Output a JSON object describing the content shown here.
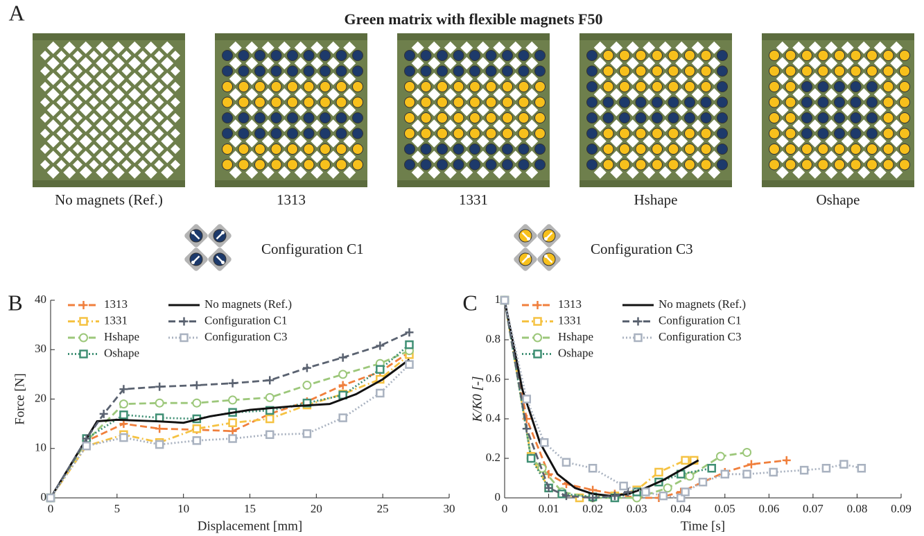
{
  "panel_a": {
    "label": "A",
    "title": "Green matrix with flexible magnets F50",
    "samples": [
      "No magnets (Ref.)",
      "1313",
      "1331",
      "Hshape",
      "Oshape"
    ],
    "configurations": [
      "Configuration C1",
      "Configuration C3"
    ]
  },
  "chart_data": [
    {
      "type": "line",
      "panel_label": "B",
      "xlabel": "Displacement [mm]",
      "ylabel": "Force [N]",
      "xlim": [
        0,
        30
      ],
      "xticks": [
        0,
        5,
        10,
        15,
        20,
        25,
        30
      ],
      "ylim": [
        0,
        40
      ],
      "yticks": [
        0,
        10,
        20,
        30,
        40
      ],
      "legend": "upper left",
      "series": [
        {
          "name": "1313",
          "color": "#f07f3c",
          "dash": "dashed",
          "marker": "plus",
          "x": [
            0,
            2.7,
            5.5,
            8.2,
            11,
            13.7,
            16.5,
            19.3,
            22,
            24.8,
            27
          ],
          "values": [
            0,
            11.5,
            15,
            14,
            13.8,
            13.5,
            17,
            19.5,
            22.8,
            25.5,
            29.5
          ]
        },
        {
          "name": "1331",
          "color": "#f5c242",
          "dash": "dashdot",
          "marker": "square",
          "x": [
            0,
            2.7,
            5.5,
            8.2,
            11,
            13.7,
            16.5,
            19.3,
            22,
            24.8,
            27
          ],
          "values": [
            0,
            10.5,
            12.8,
            11.2,
            14,
            15.2,
            16,
            18.8,
            21,
            24,
            29
          ]
        },
        {
          "name": "Hshape",
          "color": "#9cc77a",
          "dash": "dashed",
          "marker": "circle",
          "x": [
            0,
            2.7,
            5.5,
            8.2,
            11,
            13.7,
            16.5,
            19.3,
            22,
            24.8,
            27
          ],
          "values": [
            0,
            11.5,
            19,
            19.2,
            19.2,
            19.8,
            20.3,
            22.8,
            25,
            27.2,
            29.8
          ]
        },
        {
          "name": "Oshape",
          "color": "#3f8f74",
          "dash": "dotted",
          "marker": "square",
          "x": [
            0,
            2.7,
            5.5,
            8.2,
            11,
            13.7,
            16.5,
            19.3,
            22,
            24.8,
            27
          ],
          "values": [
            0,
            12,
            16.8,
            16.2,
            16,
            17.3,
            17.7,
            19.2,
            20.8,
            26,
            31
          ]
        },
        {
          "name": "No magnets (Ref.)",
          "color": "#111111",
          "dash": "solid",
          "marker": "none",
          "x": [
            0,
            3.5,
            5,
            8,
            10,
            12,
            15,
            18,
            21,
            23,
            25,
            27
          ],
          "values": [
            0,
            15.5,
            15.8,
            15.5,
            15.2,
            16.5,
            17.8,
            18.5,
            19,
            21,
            24,
            28
          ]
        },
        {
          "name": "Configuration C1",
          "color": "#5a6270",
          "dash": "dashed",
          "marker": "plus",
          "x": [
            0,
            2.7,
            4,
            5.5,
            8.2,
            11,
            13.7,
            16.5,
            19.3,
            22,
            24.8,
            27
          ],
          "values": [
            0,
            12,
            17,
            22,
            22.5,
            22.8,
            23.2,
            23.8,
            26.3,
            28.4,
            30.8,
            33.5
          ]
        },
        {
          "name": "Configuration C3",
          "color": "#a9b2c0",
          "dash": "dotted",
          "marker": "square",
          "x": [
            0,
            2.7,
            5.5,
            8.2,
            11,
            13.7,
            16.5,
            19.3,
            22,
            24.8,
            27
          ],
          "values": [
            0,
            10.5,
            12.2,
            10.8,
            11.6,
            12,
            12.8,
            13,
            16.2,
            21.2,
            27
          ]
        }
      ]
    },
    {
      "type": "line",
      "panel_label": "C",
      "xlabel": "Time [s]",
      "ylabel": "K/K0 [-]",
      "xlim": [
        0,
        0.09
      ],
      "xticks": [
        0,
        0.01,
        0.02,
        0.03,
        0.04,
        0.05,
        0.06,
        0.07,
        0.08,
        0.09
      ],
      "ylim": [
        0,
        1
      ],
      "yticks": [
        0,
        0.2,
        0.4,
        0.6,
        0.8,
        1
      ],
      "legend": "upper left",
      "series": [
        {
          "name": "1313",
          "color": "#f07f3c",
          "dash": "dashed",
          "marker": "plus",
          "x": [
            0,
            0.005,
            0.01,
            0.014,
            0.02,
            0.025,
            0.03,
            0.035,
            0.04,
            0.045,
            0.05,
            0.056,
            0.064
          ],
          "values": [
            1,
            0.4,
            0.12,
            0.07,
            0.04,
            0.02,
            0,
            0,
            0.03,
            0.08,
            0.13,
            0.17,
            0.19
          ]
        },
        {
          "name": "1331",
          "color": "#f5c242",
          "dash": "dashdot",
          "marker": "square",
          "x": [
            0,
            0.006,
            0.01,
            0.013,
            0.017,
            0.025,
            0.03,
            0.035,
            0.041,
            0.043
          ],
          "values": [
            1,
            0.21,
            0.05,
            0.02,
            0,
            0.01,
            0.04,
            0.13,
            0.19,
            0.19
          ]
        },
        {
          "name": "Hshape",
          "color": "#9cc77a",
          "dash": "dashed",
          "marker": "circle",
          "x": [
            0,
            0.006,
            0.0085,
            0.013,
            0.02,
            0.03,
            0.037,
            0.042,
            0.049,
            0.055
          ],
          "values": [
            1,
            0.2,
            0.15,
            0.03,
            0,
            0,
            0.05,
            0.11,
            0.21,
            0.23
          ]
        },
        {
          "name": "Oshape",
          "color": "#3f8f74",
          "dash": "dotted",
          "marker": "square",
          "x": [
            0,
            0.006,
            0.01,
            0.013,
            0.02,
            0.025,
            0.03,
            0.035,
            0.04,
            0.047
          ],
          "values": [
            1,
            0.2,
            0.05,
            0.02,
            0.005,
            0,
            0.03,
            0.08,
            0.12,
            0.15
          ]
        },
        {
          "name": "No magnets (Ref.)",
          "color": "#111111",
          "dash": "solid",
          "marker": "none",
          "x": [
            0,
            0.004,
            0.008,
            0.012,
            0.016,
            0.02,
            0.024,
            0.028,
            0.032,
            0.036,
            0.04,
            0.044
          ],
          "values": [
            1,
            0.55,
            0.28,
            0.12,
            0.05,
            0.02,
            0.01,
            0.02,
            0.05,
            0.09,
            0.14,
            0.19
          ]
        },
        {
          "name": "Configuration C1",
          "color": "#5a6270",
          "dash": "dashed",
          "marker": "plus",
          "x": [
            0,
            0.005,
            0.01,
            0.014,
            0.02,
            0.025,
            0.028
          ],
          "values": [
            1,
            0.35,
            0.05,
            0.01,
            0,
            0.01,
            0.03
          ]
        },
        {
          "name": "Configuration C3",
          "color": "#a9b2c0",
          "dash": "dotted",
          "marker": "square",
          "x": [
            0,
            0.005,
            0.009,
            0.014,
            0.02,
            0.027,
            0.032,
            0.036,
            0.04,
            0.041,
            0.045,
            0.05,
            0.055,
            0.061,
            0.068,
            0.073,
            0.077,
            0.081
          ],
          "values": [
            1,
            0.5,
            0.28,
            0.18,
            0.15,
            0.06,
            0.03,
            0.01,
            0,
            0.03,
            0.08,
            0.12,
            0.12,
            0.13,
            0.14,
            0.15,
            0.17,
            0.15
          ]
        }
      ]
    }
  ]
}
